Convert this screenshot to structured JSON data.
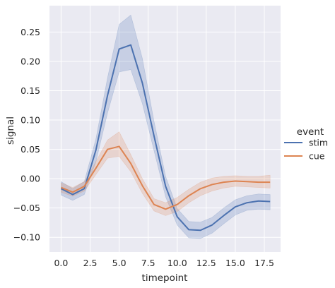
{
  "chart_data": {
    "type": "line",
    "xlabel": "timepoint",
    "ylabel": "signal",
    "xlim": [
      -1,
      18.9
    ],
    "ylim": [
      -0.125,
      0.295
    ],
    "x_ticks": [
      "0.0",
      "2.5",
      "5.0",
      "7.5",
      "10.0",
      "12.5",
      "15.0",
      "17.5"
    ],
    "y_ticks": [
      "0.25",
      "0.20",
      "0.15",
      "0.10",
      "0.05",
      "0.00",
      "−0.05",
      "−0.10"
    ],
    "x": [
      0,
      1,
      2,
      3,
      4,
      5,
      6,
      7,
      8,
      9,
      10,
      11,
      12,
      13,
      14,
      15,
      16,
      17,
      18
    ],
    "grid": true,
    "background_color": "#eaeaf2",
    "legend": {
      "title": "event",
      "placement": "right"
    },
    "series": [
      {
        "name": "stim",
        "color": "#4c72b0",
        "values": [
          -0.017,
          -0.027,
          -0.017,
          0.049,
          0.142,
          0.221,
          0.228,
          0.163,
          0.073,
          -0.013,
          -0.065,
          -0.087,
          -0.088,
          -0.079,
          -0.063,
          -0.048,
          -0.041,
          -0.038,
          -0.039
        ],
        "ci_low": [
          -0.028,
          -0.037,
          -0.027,
          0.029,
          0.112,
          0.182,
          0.186,
          0.128,
          0.048,
          -0.031,
          -0.079,
          -0.101,
          -0.102,
          -0.093,
          -0.077,
          -0.062,
          -0.054,
          -0.052,
          -0.053
        ],
        "ci_high": [
          -0.005,
          -0.017,
          -0.005,
          0.068,
          0.172,
          0.263,
          0.279,
          0.205,
          0.098,
          0.004,
          -0.051,
          -0.073,
          -0.074,
          -0.066,
          -0.05,
          -0.036,
          -0.029,
          -0.026,
          -0.027
        ]
      },
      {
        "name": "cue",
        "color": "#dd8452",
        "values": [
          -0.015,
          -0.023,
          -0.013,
          0.018,
          0.05,
          0.055,
          0.026,
          -0.012,
          -0.044,
          -0.052,
          -0.044,
          -0.029,
          -0.017,
          -0.01,
          -0.006,
          -0.004,
          -0.005,
          -0.006,
          -0.006
        ],
        "ci_low": [
          -0.023,
          -0.03,
          -0.021,
          0.007,
          0.035,
          0.038,
          0.012,
          -0.025,
          -0.055,
          -0.063,
          -0.056,
          -0.041,
          -0.029,
          -0.021,
          -0.016,
          -0.013,
          -0.014,
          -0.015,
          -0.016
        ],
        "ci_high": [
          -0.007,
          -0.015,
          -0.005,
          0.029,
          0.066,
          0.08,
          0.041,
          0.0,
          -0.034,
          -0.041,
          -0.032,
          -0.018,
          -0.006,
          0.001,
          0.004,
          0.005,
          0.004,
          0.004,
          0.006
        ]
      }
    ]
  }
}
